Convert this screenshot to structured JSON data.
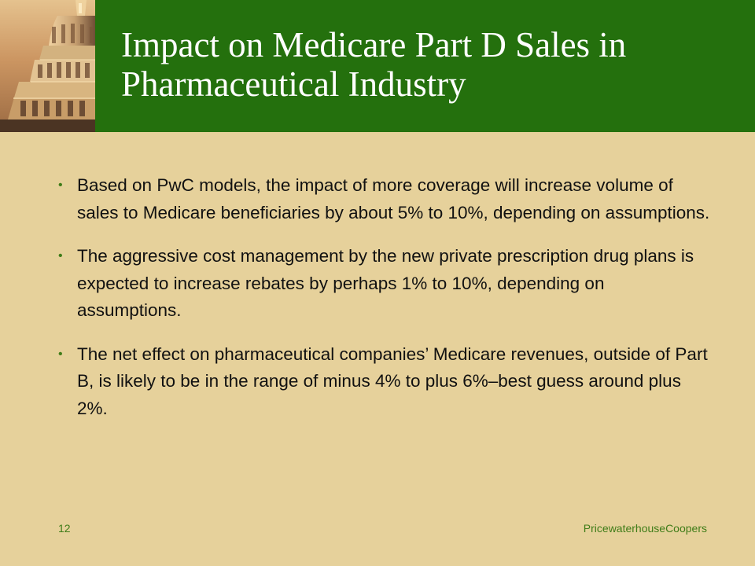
{
  "slide": {
    "title": "Impact on Medicare Part D Sales in Pharmaceutical Industry",
    "bullets": [
      {
        "marker": "•",
        "text": "Based on PwC models, the impact of more coverage will increase volume of sales to Medicare beneficiaries by about 5% to 10%, depending on assumptions."
      },
      {
        "marker": "•",
        "text": "The aggressive cost management by the new private prescription drug plans is expected to increase rebates by perhaps 1% to 10%, depending on assumptions."
      },
      {
        "marker": "•",
        "text": "The net effect on pharmaceutical companies’ Medicare revenues, outside of Part B, is likely to be in the range of minus 4% to plus 6%–best guess around plus 2%."
      }
    ],
    "footer": {
      "page_number": "12",
      "company": "PricewaterhouseCoopers"
    }
  },
  "colors": {
    "background": "#e6d19b",
    "header_green": "#24700d",
    "bullet_green": "#3f7c18",
    "title_white": "#ffffff",
    "body_text": "#111111"
  },
  "icons": {
    "header_image": "capitol-dome-image"
  }
}
